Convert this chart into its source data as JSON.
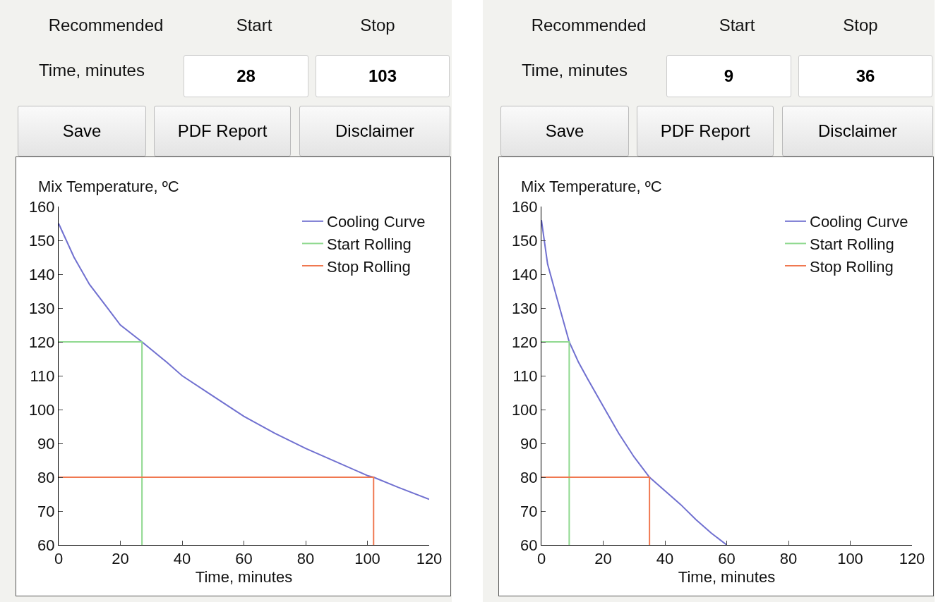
{
  "chart_data": [
    {
      "type": "other",
      "annotations": [
        "Recommended",
        "Start",
        "Stop",
        "Time, minutes",
        "28",
        "103",
        "Save",
        "PDF Report",
        "Disclaimer"
      ]
    },
    {
      "type": "line",
      "ylabel": "Mix Temperature, ºC",
      "xlabel": "Time, minutes",
      "xlim": [
        0,
        120
      ],
      "ylim": [
        60,
        160
      ],
      "xticks": [
        0,
        20,
        40,
        60,
        80,
        100,
        120
      ],
      "yticks": [
        60,
        70,
        80,
        90,
        100,
        110,
        120,
        130,
        140,
        150,
        160
      ],
      "grid": false,
      "legend": "top right",
      "marker": "none",
      "line_style": "solid",
      "series": [
        {
          "name": "Cooling Curve",
          "color": "#7070d0",
          "x": [
            0,
            5,
            10,
            15,
            20,
            27,
            35,
            40,
            50,
            60,
            70,
            80,
            90,
            100,
            102,
            110,
            120
          ],
          "values": [
            155,
            145,
            137,
            131,
            125,
            120,
            114,
            110,
            104,
            98,
            93,
            88.5,
            84.5,
            80.5,
            80,
            77,
            73.5
          ]
        },
        {
          "name": "Start Rolling",
          "color": "#8fd98f",
          "x": [
            0,
            27,
            27
          ],
          "values": [
            120,
            120,
            60
          ]
        },
        {
          "name": "Stop Rolling",
          "color": "#f07850",
          "x": [
            0,
            102,
            102
          ],
          "values": [
            80,
            80,
            60
          ]
        }
      ]
    },
    {
      "type": "other",
      "annotations": [
        "Recommended",
        "Start",
        "Stop",
        "Time, minutes",
        "9",
        "36",
        "Save",
        "PDF Report",
        "Disclaimer"
      ]
    },
    {
      "type": "line",
      "ylabel": "Mix Temperature, ºC",
      "xlabel": "Time, minutes",
      "xlim": [
        0,
        120
      ],
      "ylim": [
        60,
        160
      ],
      "xticks": [
        0,
        20,
        40,
        60,
        80,
        100,
        120
      ],
      "yticks": [
        60,
        70,
        80,
        90,
        100,
        110,
        120,
        130,
        140,
        150,
        160
      ],
      "grid": false,
      "legend": "top right",
      "marker": "none",
      "line_style": "solid",
      "series": [
        {
          "name": "Cooling Curve",
          "color": "#7070d0",
          "x": [
            0,
            2,
            5,
            9,
            12,
            15,
            20,
            25,
            30,
            35,
            40,
            45,
            50,
            55,
            60
          ],
          "values": [
            156,
            143,
            133,
            120,
            114,
            109,
            101,
            93,
            86,
            80,
            76,
            72,
            67.5,
            63.5,
            60
          ]
        },
        {
          "name": "Start Rolling",
          "color": "#8fd98f",
          "x": [
            0,
            9,
            9
          ],
          "values": [
            120,
            120,
            60
          ]
        },
        {
          "name": "Stop Rolling",
          "color": "#f07850",
          "x": [
            0,
            35,
            35
          ],
          "values": [
            80,
            80,
            60
          ]
        }
      ]
    }
  ]
}
